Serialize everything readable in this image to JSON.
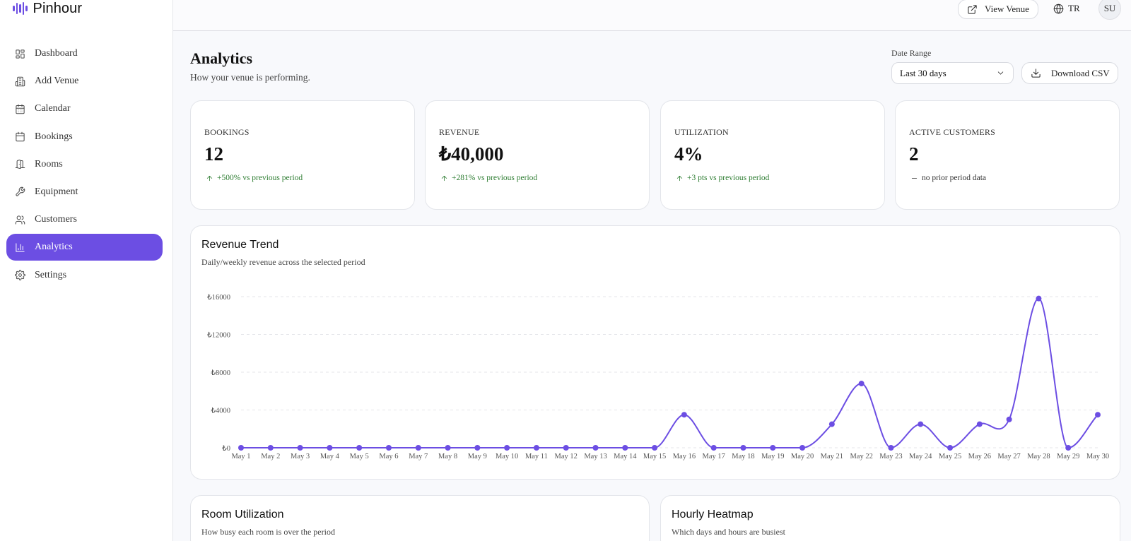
{
  "app": {
    "name": "Pinhour"
  },
  "sidebar": {
    "items": [
      {
        "label": "Dashboard",
        "icon": "dashboard-icon"
      },
      {
        "label": "Add Venue",
        "icon": "building-icon"
      },
      {
        "label": "Calendar",
        "icon": "calendar-icon"
      },
      {
        "label": "Bookings",
        "icon": "calendar-check-icon"
      },
      {
        "label": "Rooms",
        "icon": "door-icon"
      },
      {
        "label": "Equipment",
        "icon": "wrench-icon"
      },
      {
        "label": "Customers",
        "icon": "users-icon"
      },
      {
        "label": "Analytics",
        "icon": "bar-chart-icon",
        "active": true
      },
      {
        "label": "Settings",
        "icon": "gear-icon"
      }
    ]
  },
  "topbar": {
    "view_venue_label": "View Venue",
    "language": "TR",
    "avatar_initials": "SU"
  },
  "header": {
    "title": "Analytics",
    "subtitle": "How your venue is performing.",
    "date_range_label": "Date Range",
    "date_range_value": "Last 30 days",
    "download_label": "Download CSV"
  },
  "kpis": [
    {
      "label": "BOOKINGS",
      "value": "12",
      "change": "+500% vs previous period",
      "trend": "up"
    },
    {
      "label": "REVENUE",
      "value": "₺40,000",
      "change": "+281% vs previous period",
      "trend": "up"
    },
    {
      "label": "UTILIZATION",
      "value": "4%",
      "change": "+3 pts vs previous period",
      "trend": "up"
    },
    {
      "label": "ACTIVE CUSTOMERS",
      "value": "2",
      "change": "no prior period data",
      "trend": "none"
    }
  ],
  "revenue_card": {
    "title": "Revenue Trend",
    "subtitle": "Daily/weekly revenue across the selected period"
  },
  "chart_data": {
    "type": "line",
    "title": "Revenue Trend",
    "xlabel": "",
    "ylabel": "",
    "y_tick_labels": [
      "₺0",
      "₺4000",
      "₺8000",
      "₺12000",
      "₺16000"
    ],
    "y_ticks": [
      0,
      4000,
      8000,
      12000,
      16000
    ],
    "ylim": [
      0,
      16000
    ],
    "grid": true,
    "line_color": "#6c4ee3",
    "categories": [
      "May 1",
      "May 2",
      "May 3",
      "May 4",
      "May 5",
      "May 6",
      "May 7",
      "May 8",
      "May 9",
      "May 10",
      "May 11",
      "May 12",
      "May 13",
      "May 14",
      "May 15",
      "May 16",
      "May 17",
      "May 18",
      "May 19",
      "May 20",
      "May 21",
      "May 22",
      "May 23",
      "May 24",
      "May 25",
      "May 26",
      "May 27",
      "May 28",
      "May 29",
      "May 30"
    ],
    "series": [
      {
        "values": [
          0,
          0,
          0,
          0,
          0,
          0,
          0,
          0,
          0,
          0,
          0,
          0,
          0,
          0,
          0,
          3500,
          0,
          0,
          0,
          0,
          2500,
          6800,
          0,
          2500,
          0,
          2500,
          3000,
          15800,
          0,
          3500
        ]
      }
    ]
  },
  "room_util_card": {
    "title": "Room Utilization",
    "subtitle": "How busy each room is over the period"
  },
  "heatmap_card": {
    "title": "Hourly Heatmap",
    "subtitle": "Which days and hours are busiest"
  }
}
